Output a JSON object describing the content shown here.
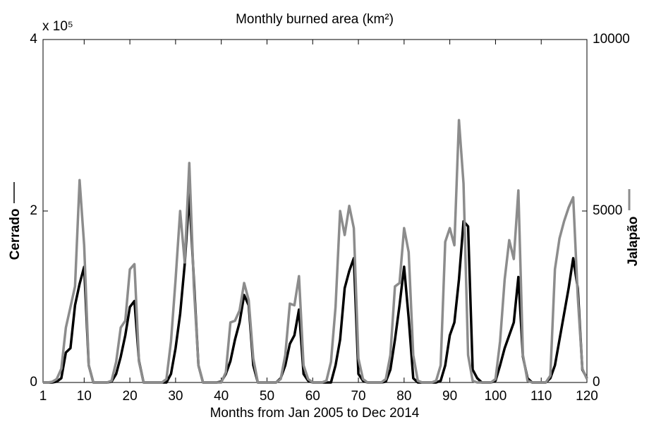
{
  "chart_data": {
    "type": "line",
    "title": "Monthly burned area (km²)",
    "xlabel": "Months from Jan 2005 to Dec 2014",
    "y_multiplier": "x 10⁵",
    "x": [
      1,
      2,
      3,
      4,
      5,
      6,
      7,
      8,
      9,
      10,
      11,
      12,
      13,
      14,
      15,
      16,
      17,
      18,
      19,
      20,
      21,
      22,
      23,
      24,
      25,
      26,
      27,
      28,
      29,
      30,
      31,
      32,
      33,
      34,
      35,
      36,
      37,
      38,
      39,
      40,
      41,
      42,
      43,
      44,
      45,
      46,
      47,
      48,
      49,
      50,
      51,
      52,
      53,
      54,
      55,
      56,
      57,
      58,
      59,
      60,
      61,
      62,
      63,
      64,
      65,
      66,
      67,
      68,
      69,
      70,
      71,
      72,
      73,
      74,
      75,
      76,
      77,
      78,
      79,
      80,
      81,
      82,
      83,
      84,
      85,
      86,
      87,
      88,
      89,
      90,
      91,
      92,
      93,
      94,
      95,
      96,
      97,
      98,
      99,
      100,
      101,
      102,
      103,
      104,
      105,
      106,
      107,
      108,
      109,
      110,
      111,
      112,
      113,
      114,
      115,
      116,
      117,
      118,
      119,
      120
    ],
    "xlim": [
      1,
      120
    ],
    "xticks": [
      1,
      10,
      20,
      30,
      40,
      50,
      60,
      70,
      80,
      90,
      100,
      110,
      120
    ],
    "ylim": [
      0,
      4
    ],
    "yticks": [
      0,
      2,
      4
    ],
    "y2lim": [
      0,
      10000
    ],
    "y2ticks": [
      0,
      5000,
      10000
    ],
    "grid": false,
    "series": [
      {
        "name": "Cerrado",
        "color": "#000000",
        "axis": "y",
        "values": [
          0,
          0,
          0,
          0.01,
          0.05,
          0.35,
          0.4,
          0.9,
          1.15,
          1.35,
          0.2,
          0,
          0,
          0,
          0,
          0.01,
          0.1,
          0.3,
          0.55,
          0.88,
          0.95,
          0.25,
          0,
          0,
          0,
          0,
          0,
          0,
          0.1,
          0.4,
          0.8,
          1.38,
          2.2,
          1.2,
          0.2,
          0,
          0,
          0,
          0,
          0.01,
          0.1,
          0.25,
          0.5,
          0.7,
          1.02,
          0.9,
          0.2,
          0,
          0,
          0,
          0,
          0,
          0.05,
          0.2,
          0.45,
          0.55,
          0.85,
          0.1,
          0.02,
          0,
          0,
          0,
          0,
          0,
          0.2,
          0.5,
          1.1,
          1.3,
          1.45,
          0.1,
          0.02,
          0,
          0,
          0,
          0,
          0.01,
          0.15,
          0.5,
          0.9,
          1.35,
          0.75,
          0.05,
          0,
          0,
          0,
          0,
          0,
          0.02,
          0.2,
          0.55,
          0.7,
          1.2,
          1.88,
          1.82,
          0.15,
          0.05,
          0,
          0,
          0,
          0.02,
          0.2,
          0.4,
          0.55,
          0.7,
          1.23,
          0.3,
          0.05,
          0,
          0,
          0,
          0,
          0.05,
          0.2,
          0.5,
          0.8,
          1.1,
          1.45,
          1.1,
          0.15,
          0.05
        ]
      },
      {
        "name": "Jalapão",
        "color": "#8c8c8c",
        "axis": "y2",
        "values": [
          0,
          0,
          20,
          100,
          400,
          1600,
          2200,
          2800,
          5900,
          4000,
          500,
          0,
          0,
          0,
          0,
          50,
          600,
          1600,
          1800,
          3300,
          3450,
          600,
          0,
          0,
          0,
          0,
          0,
          100,
          1200,
          3000,
          5000,
          3500,
          6400,
          2800,
          500,
          0,
          0,
          0,
          0,
          0,
          300,
          1750,
          1800,
          2100,
          2900,
          2400,
          700,
          0,
          0,
          0,
          0,
          0,
          100,
          800,
          2300,
          2250,
          3100,
          500,
          100,
          0,
          0,
          0,
          50,
          600,
          2200,
          5000,
          4300,
          5150,
          4500,
          700,
          100,
          0,
          0,
          0,
          0,
          100,
          800,
          2800,
          2900,
          4500,
          3800,
          800,
          50,
          0,
          0,
          0,
          50,
          500,
          4100,
          4500,
          4000,
          7650,
          5800,
          800,
          50,
          0,
          0,
          0,
          0,
          100,
          1200,
          3000,
          4150,
          3600,
          5600,
          800,
          50,
          0,
          0,
          0,
          0,
          200,
          3300,
          4200,
          4700,
          5100,
          5400,
          2500,
          400,
          100
        ]
      }
    ]
  }
}
